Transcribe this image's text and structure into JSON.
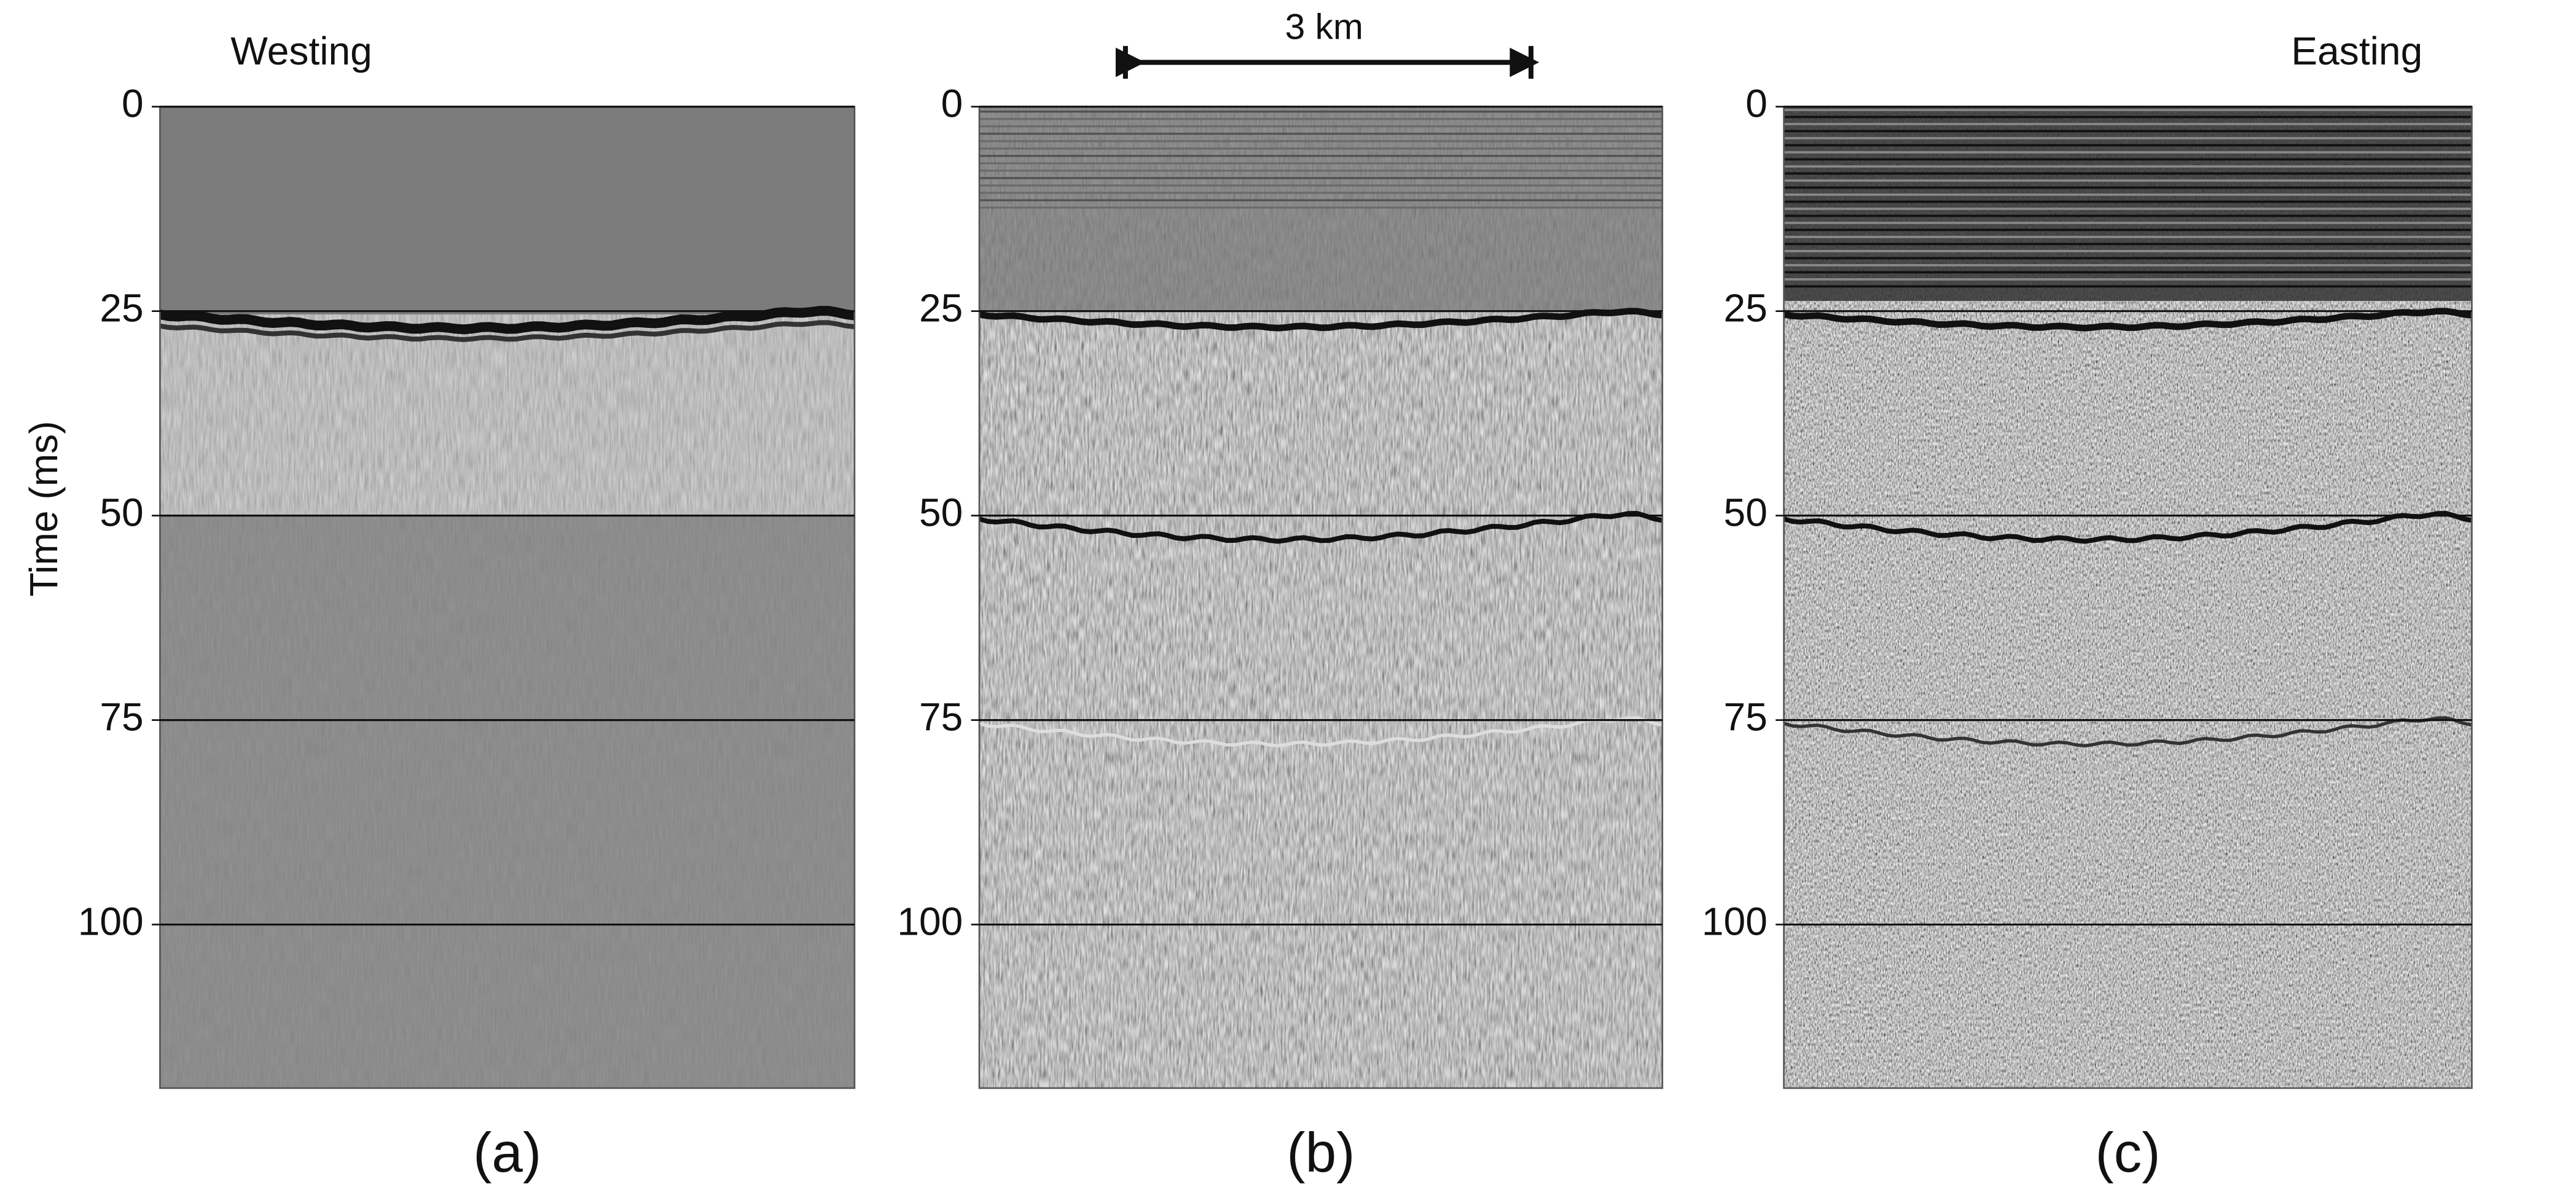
{
  "chart_data": [
    {
      "type": "seismic",
      "direction": "Westing",
      "ylabel": "Time (ms)",
      "label": "(a)",
      "ylim": [
        0,
        120
      ],
      "y_inverted": true,
      "yticks": [
        0,
        25,
        50,
        75,
        100
      ],
      "grid": true
    },
    {
      "type": "seismic",
      "scale_bar": "3 km",
      "label": "(b)",
      "ylim": [
        0,
        120
      ],
      "y_inverted": true,
      "yticks": [
        0,
        25,
        50,
        75,
        100
      ],
      "grid": true
    },
    {
      "type": "seismic",
      "direction": "Easting",
      "label": "(c)",
      "ylim": [
        0,
        120
      ],
      "y_inverted": true,
      "yticks": [
        0,
        25,
        50,
        75,
        100
      ],
      "grid": true
    }
  ]
}
